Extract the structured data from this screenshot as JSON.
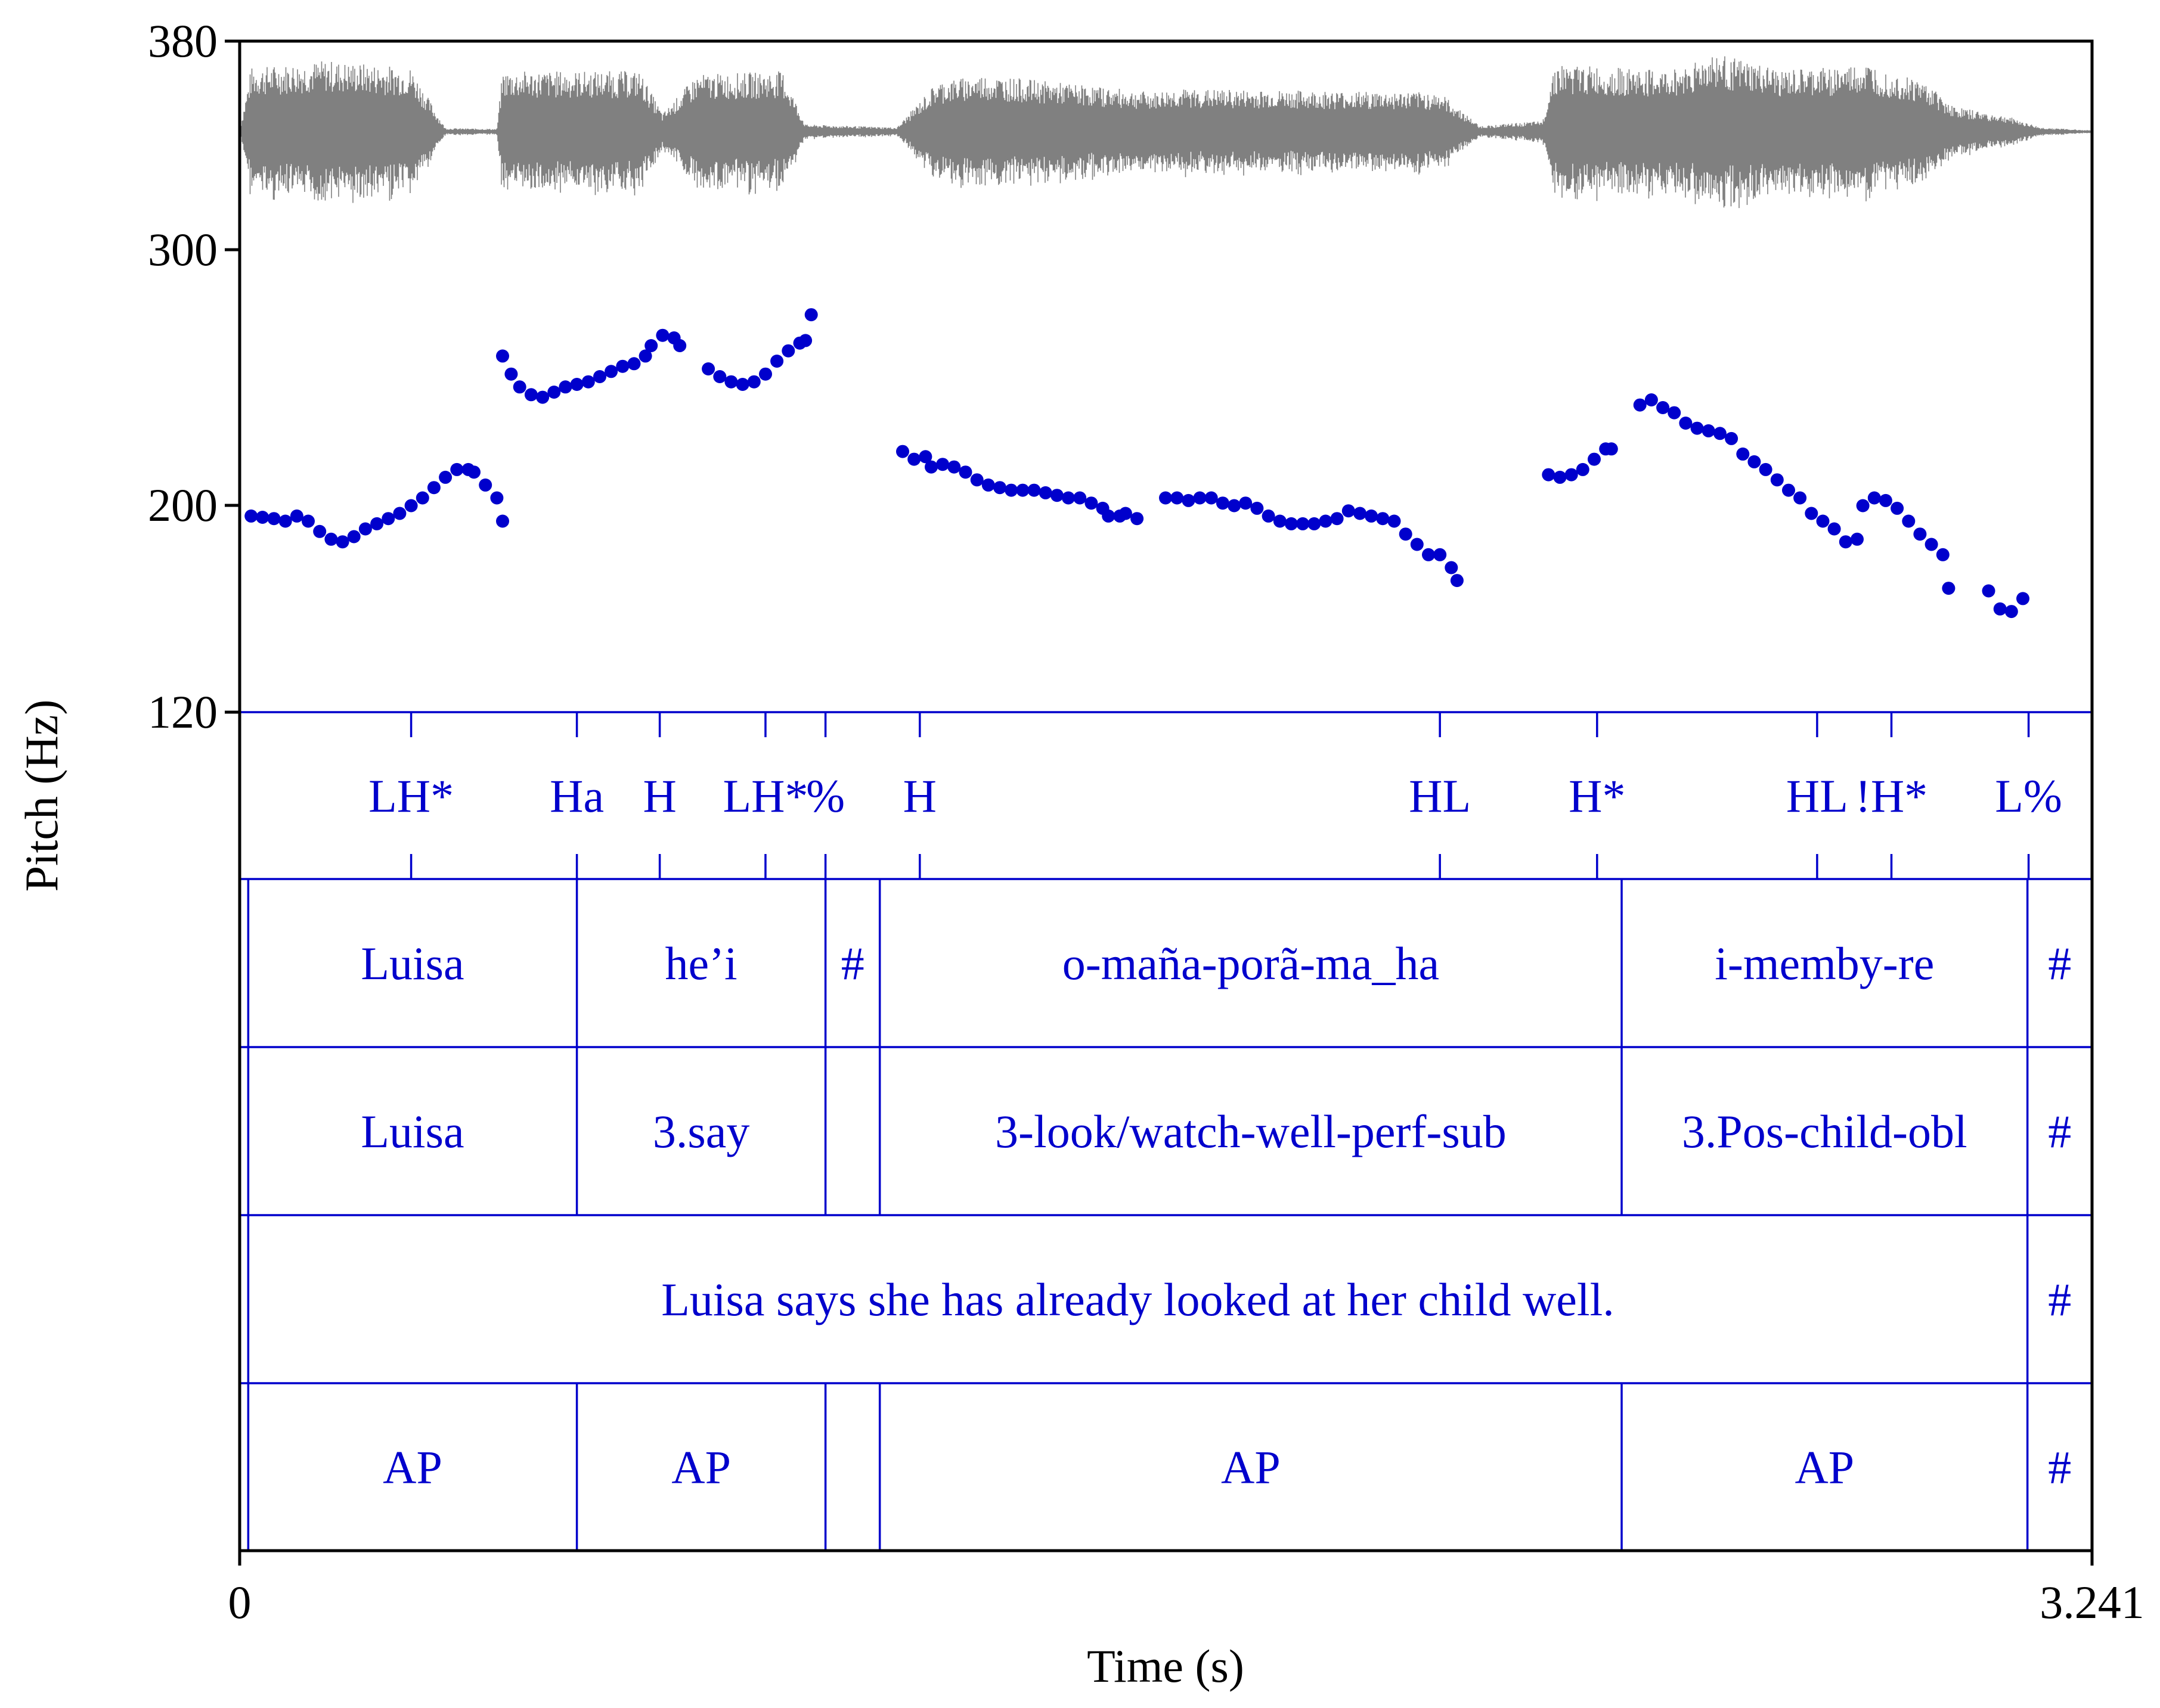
{
  "colors": {
    "pitch_points": "#0000cc",
    "tiers": "#0000cc",
    "waveform": "#808080",
    "axes": "#000000"
  },
  "chart_data": {
    "type": "scatter",
    "title": "",
    "xlabel": "Time (s)",
    "ylabel": "Pitch (Hz)",
    "xlim": [
      0,
      3.241
    ],
    "ylim": [
      120,
      380
    ],
    "x_tick_labels": [
      "0",
      "3.241"
    ],
    "y_tick_labels": [
      "120",
      "200",
      "300",
      "380"
    ],
    "waveform": {
      "shown": true,
      "color": "#808080"
    },
    "pitch_points": [
      [
        0.02,
        196
      ],
      [
        0.04,
        195.5
      ],
      [
        0.06,
        195
      ],
      [
        0.08,
        194
      ],
      [
        0.1,
        196
      ],
      [
        0.12,
        194
      ],
      [
        0.14,
        190
      ],
      [
        0.16,
        187
      ],
      [
        0.18,
        186
      ],
      [
        0.2,
        188
      ],
      [
        0.22,
        191
      ],
      [
        0.24,
        193
      ],
      [
        0.26,
        195
      ],
      [
        0.28,
        197
      ],
      [
        0.3,
        200
      ],
      [
        0.32,
        203
      ],
      [
        0.34,
        207
      ],
      [
        0.36,
        211
      ],
      [
        0.38,
        214
      ],
      [
        0.4,
        214
      ],
      [
        0.41,
        213
      ],
      [
        0.43,
        208
      ],
      [
        0.45,
        203
      ],
      [
        0.46,
        194
      ],
      [
        0.46,
        258
      ],
      [
        0.475,
        251
      ],
      [
        0.49,
        246
      ],
      [
        0.51,
        243
      ],
      [
        0.53,
        242
      ],
      [
        0.55,
        244
      ],
      [
        0.57,
        246
      ],
      [
        0.59,
        247
      ],
      [
        0.61,
        248
      ],
      [
        0.63,
        250
      ],
      [
        0.65,
        252
      ],
      [
        0.67,
        254
      ],
      [
        0.69,
        255
      ],
      [
        0.71,
        258
      ],
      [
        0.72,
        262
      ],
      [
        0.74,
        266
      ],
      [
        0.76,
        265
      ],
      [
        0.77,
        262
      ],
      [
        0.82,
        253
      ],
      [
        0.84,
        250
      ],
      [
        0.86,
        248
      ],
      [
        0.88,
        247
      ],
      [
        0.9,
        248
      ],
      [
        0.92,
        251
      ],
      [
        0.94,
        256
      ],
      [
        0.96,
        260
      ],
      [
        0.98,
        263
      ],
      [
        0.99,
        264
      ],
      [
        1.0,
        274
      ],
      [
        1.16,
        221
      ],
      [
        1.18,
        218
      ],
      [
        1.2,
        219
      ],
      [
        1.21,
        215
      ],
      [
        1.23,
        216
      ],
      [
        1.25,
        215
      ],
      [
        1.27,
        213
      ],
      [
        1.29,
        210
      ],
      [
        1.31,
        208
      ],
      [
        1.33,
        207
      ],
      [
        1.35,
        206
      ],
      [
        1.37,
        206
      ],
      [
        1.39,
        206
      ],
      [
        1.41,
        205
      ],
      [
        1.43,
        204
      ],
      [
        1.45,
        203
      ],
      [
        1.47,
        203
      ],
      [
        1.49,
        201
      ],
      [
        1.51,
        199
      ],
      [
        1.52,
        196
      ],
      [
        1.54,
        196
      ],
      [
        1.55,
        197
      ],
      [
        1.57,
        195
      ],
      [
        1.62,
        203
      ],
      [
        1.64,
        203
      ],
      [
        1.66,
        202
      ],
      [
        1.68,
        203
      ],
      [
        1.7,
        203
      ],
      [
        1.72,
        201
      ],
      [
        1.74,
        200
      ],
      [
        1.76,
        201
      ],
      [
        1.78,
        199
      ],
      [
        1.8,
        196
      ],
      [
        1.82,
        194
      ],
      [
        1.84,
        193
      ],
      [
        1.86,
        193
      ],
      [
        1.88,
        193
      ],
      [
        1.9,
        194
      ],
      [
        1.92,
        195
      ],
      [
        1.94,
        198
      ],
      [
        1.96,
        197
      ],
      [
        1.98,
        196
      ],
      [
        2.0,
        195
      ],
      [
        2.02,
        194
      ],
      [
        2.04,
        189
      ],
      [
        2.06,
        185
      ],
      [
        2.08,
        181
      ],
      [
        2.1,
        181
      ],
      [
        2.12,
        176
      ],
      [
        2.13,
        171
      ],
      [
        2.29,
        212
      ],
      [
        2.31,
        211
      ],
      [
        2.33,
        212
      ],
      [
        2.35,
        214
      ],
      [
        2.37,
        218
      ],
      [
        2.39,
        222
      ],
      [
        2.4,
        222
      ],
      [
        2.45,
        239
      ],
      [
        2.47,
        241
      ],
      [
        2.49,
        238
      ],
      [
        2.51,
        236
      ],
      [
        2.53,
        232
      ],
      [
        2.55,
        230
      ],
      [
        2.57,
        229
      ],
      [
        2.59,
        228
      ],
      [
        2.61,
        226
      ],
      [
        2.63,
        220
      ],
      [
        2.65,
        217
      ],
      [
        2.67,
        214
      ],
      [
        2.69,
        210
      ],
      [
        2.71,
        206
      ],
      [
        2.73,
        203
      ],
      [
        2.75,
        197
      ],
      [
        2.77,
        194
      ],
      [
        2.79,
        191
      ],
      [
        2.81,
        186
      ],
      [
        2.83,
        187
      ],
      [
        2.84,
        200
      ],
      [
        2.86,
        203
      ],
      [
        2.88,
        202
      ],
      [
        2.9,
        199
      ],
      [
        2.92,
        194
      ],
      [
        2.94,
        189
      ],
      [
        2.96,
        185
      ],
      [
        2.98,
        181
      ],
      [
        2.99,
        168
      ],
      [
        3.06,
        167
      ],
      [
        3.08,
        160
      ],
      [
        3.1,
        159
      ],
      [
        3.12,
        164
      ]
    ],
    "tiers": [
      {
        "kind": "point",
        "items": [
          {
            "t": 0.3,
            "label": "LH*"
          },
          {
            "t": 0.59,
            "label": "Ha"
          },
          {
            "t": 0.735,
            "label": "H"
          },
          {
            "t": 0.92,
            "label": "LH*"
          },
          {
            "t": 1.025,
            "label": "%"
          },
          {
            "t": 1.19,
            "label": "H"
          },
          {
            "t": 2.1,
            "label": "HL"
          },
          {
            "t": 2.375,
            "label": "H*"
          },
          {
            "t": 2.76,
            "label": "HL"
          },
          {
            "t": 2.89,
            "label": "!H*"
          },
          {
            "t": 3.13,
            "label": "L%"
          }
        ]
      },
      {
        "kind": "interval",
        "bounds": [
          0.015,
          0.59,
          1.025,
          1.12,
          2.418,
          3.128
        ],
        "labels": [
          "Luisa",
          "he’i",
          "#",
          "o-maña-porã-ma_ha",
          "i-memby-re",
          "#"
        ]
      },
      {
        "kind": "interval",
        "bounds": [
          0.015,
          0.59,
          1.025,
          1.12,
          2.418,
          3.128
        ],
        "labels": [
          "Luisa",
          "3.say",
          "",
          "3-look/watch-well-perf-sub",
          "3.Pos-child-obl",
          "#"
        ]
      },
      {
        "kind": "interval",
        "bounds": [
          0.015,
          3.128
        ],
        "labels": [
          "Luisa says she has already looked at her child well.",
          "#"
        ]
      },
      {
        "kind": "interval",
        "bounds": [
          0.015,
          0.59,
          1.025,
          1.12,
          2.418,
          3.128
        ],
        "labels": [
          "AP",
          "AP",
          "",
          "AP",
          "AP",
          "#"
        ]
      }
    ]
  }
}
